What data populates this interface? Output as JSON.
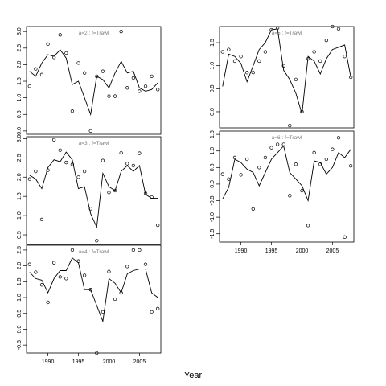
{
  "figure": {
    "xlabel": "Year"
  },
  "chart_data": [
    {
      "type": "line",
      "panel_label": "a=2  :  f=Trawl",
      "x_ticks": [
        1990,
        1995,
        2000,
        2005
      ],
      "show_x_ticks": false,
      "y_ticks": [
        "0.0",
        "0.5",
        "1.0",
        "1.5",
        "2.0",
        "2.5",
        "3.0"
      ],
      "xlim": [
        1986.5,
        2008.5
      ],
      "ylim": [
        -0.1,
        3.15
      ],
      "line": {
        "x": [
          1987,
          1988,
          1989,
          1990,
          1991,
          1992,
          1993,
          1994,
          1995,
          1996,
          1997,
          1998,
          1999,
          2000,
          2001,
          2002,
          2003,
          2004,
          2005,
          2006,
          2007,
          2008
        ],
        "y": [
          1.8,
          1.65,
          2.05,
          2.3,
          2.25,
          2.45,
          2.2,
          1.4,
          1.5,
          1.0,
          0.5,
          1.65,
          1.55,
          1.3,
          1.75,
          2.1,
          1.75,
          1.8,
          1.3,
          1.2,
          1.25,
          1.45
        ]
      },
      "points": {
        "x": [
          1987,
          1988,
          1989,
          1990,
          1991,
          1992,
          1993,
          1994,
          1995,
          1996,
          1997,
          1998,
          1999,
          2000,
          2001,
          2002,
          2003,
          2004,
          2005,
          2006,
          2007,
          2008
        ],
        "y": [
          1.35,
          1.87,
          1.7,
          2.62,
          2.22,
          2.9,
          2.35,
          0.6,
          2.05,
          1.75,
          0.0,
          1.65,
          1.8,
          1.05,
          1.05,
          3.0,
          1.3,
          1.6,
          1.2,
          1.35,
          1.65,
          1.25
        ]
      }
    },
    {
      "type": "line",
      "panel_label": "a=3  :  f=Trawl",
      "x_ticks": [
        1990,
        1995,
        2000,
        2005
      ],
      "show_x_ticks": false,
      "y_ticks": [
        "0.5",
        "1.0",
        "1.5",
        "2.0",
        "2.5",
        "3.0"
      ],
      "xlim": [
        1986.5,
        2008.5
      ],
      "ylim": [
        0.25,
        3.05
      ],
      "line": {
        "x": [
          1987,
          1988,
          1989,
          1990,
          1991,
          1992,
          1993,
          1994,
          1995,
          1996,
          1997,
          1998,
          1999,
          2000,
          2001,
          2002,
          2003,
          2004,
          2005,
          2006,
          2007,
          2008
        ],
        "y": [
          2.05,
          1.95,
          1.7,
          2.25,
          2.45,
          2.4,
          2.65,
          2.45,
          1.7,
          1.75,
          1.05,
          0.7,
          2.1,
          1.75,
          1.65,
          2.15,
          2.3,
          2.15,
          2.3,
          1.55,
          1.45,
          1.45
        ]
      },
      "points": {
        "x": [
          1987,
          1988,
          1989,
          1990,
          1991,
          1992,
          1993,
          1994,
          1995,
          1996,
          1997,
          1998,
          1999,
          2000,
          2001,
          2002,
          2003,
          2004,
          2005,
          2006,
          2007,
          2008
        ],
        "y": [
          1.95,
          2.15,
          0.9,
          2.18,
          2.97,
          2.7,
          2.38,
          2.33,
          2.0,
          2.15,
          1.18,
          0.35,
          2.43,
          1.6,
          1.65,
          2.63,
          2.35,
          2.3,
          2.62,
          1.58,
          1.48,
          0.75
        ]
      }
    },
    {
      "type": "line",
      "panel_label": "a=4  :  f=Trawl",
      "x_ticks": [
        1990,
        1995,
        2000,
        2005
      ],
      "show_x_ticks": true,
      "y_ticks": [
        "-0.5",
        "0.0",
        "0.5",
        "1.0",
        "1.5",
        "2.0",
        "2.5"
      ],
      "xlim": [
        1986.5,
        2008.5
      ],
      "ylim": [
        -0.75,
        2.65
      ],
      "line": {
        "x": [
          1987,
          1988,
          1989,
          1990,
          1991,
          1992,
          1993,
          1994,
          1995,
          1996,
          1997,
          1998,
          1999,
          2000,
          2001,
          2002,
          2003,
          2004,
          2005,
          2006,
          2007,
          2008
        ],
        "y": [
          1.8,
          1.6,
          1.55,
          1.15,
          1.6,
          1.85,
          1.85,
          2.25,
          2.1,
          1.25,
          1.25,
          0.75,
          0.25,
          1.6,
          1.45,
          1.15,
          1.75,
          1.85,
          1.9,
          1.9,
          1.15,
          1.0
        ]
      },
      "points": {
        "x": [
          1987,
          1988,
          1989,
          1990,
          1991,
          1992,
          1993,
          1994,
          1995,
          1996,
          1997,
          1998,
          1999,
          2000,
          2001,
          2002,
          2003,
          2004,
          2005,
          2006,
          2007,
          2008
        ],
        "y": [
          2.05,
          1.8,
          1.4,
          0.85,
          2.1,
          1.65,
          1.6,
          2.5,
          2.15,
          1.7,
          1.25,
          -0.75,
          0.55,
          1.82,
          0.95,
          1.15,
          1.98,
          2.5,
          2.5,
          2.05,
          0.55,
          0.65
        ]
      }
    },
    {
      "type": "line",
      "panel_label": "a=5  :  f=Trawl",
      "x_ticks": [
        1990,
        1995,
        2000,
        2005
      ],
      "show_x_ticks": false,
      "y_ticks": [
        "0.0",
        "0.5",
        "1.0",
        "1.5"
      ],
      "xlim": [
        1986.5,
        2008.5
      ],
      "ylim": [
        -0.35,
        1.85
      ],
      "line": {
        "x": [
          1987,
          1988,
          1989,
          1990,
          1991,
          1992,
          1993,
          1994,
          1995,
          1996,
          1997,
          1998,
          1999,
          2000,
          2001,
          2002,
          2003,
          2004,
          2005,
          2006,
          2007,
          2008
        ],
        "y": [
          0.55,
          1.25,
          1.2,
          1.05,
          0.65,
          1.0,
          1.35,
          1.5,
          1.78,
          1.8,
          0.9,
          0.7,
          0.4,
          -0.05,
          1.2,
          1.1,
          0.82,
          1.15,
          1.35,
          1.4,
          1.45,
          0.75
        ]
      },
      "points": {
        "x": [
          1987,
          1988,
          1989,
          1990,
          1991,
          1992,
          1993,
          1994,
          1995,
          1996,
          1997,
          1998,
          1999,
          2000,
          2001,
          2002,
          2003,
          2004,
          2005,
          2006,
          2007,
          2008
        ],
        "y": [
          1.3,
          1.35,
          1.1,
          1.2,
          0.85,
          0.85,
          1.1,
          1.3,
          1.78,
          1.82,
          1.0,
          -0.3,
          0.7,
          0.0,
          1.15,
          1.3,
          1.1,
          1.55,
          1.85,
          1.8,
          1.2,
          0.75
        ]
      }
    },
    {
      "type": "line",
      "panel_label": "a=6  :  f=Trawl",
      "x_ticks": [
        1990,
        1995,
        2000,
        2005
      ],
      "show_x_ticks": true,
      "y_ticks": [
        "-1.5",
        "-1.0",
        "-0.5",
        "0.0",
        "0.5",
        "1.0",
        "1.5"
      ],
      "xlim": [
        1986.5,
        2008.5
      ],
      "ylim": [
        -1.75,
        1.6
      ],
      "line": {
        "x": [
          1987,
          1988,
          1989,
          1990,
          1991,
          1992,
          1993,
          1994,
          1995,
          1996,
          1997,
          1998,
          1999,
          2000,
          2001,
          2002,
          2003,
          2004,
          2005,
          2006,
          2007,
          2008
        ],
        "y": [
          -0.45,
          -0.1,
          0.75,
          0.65,
          0.45,
          0.35,
          -0.05,
          0.35,
          0.75,
          0.95,
          1.15,
          0.35,
          0.15,
          -0.05,
          -0.5,
          0.7,
          0.65,
          0.3,
          0.5,
          0.95,
          0.8,
          1.05
        ]
      },
      "points": {
        "x": [
          1987,
          1988,
          1989,
          1990,
          1991,
          1992,
          1993,
          1994,
          1995,
          1996,
          1997,
          1998,
          1999,
          2000,
          2001,
          2002,
          2003,
          2004,
          2005,
          2006,
          2007,
          2008
        ],
        "y": [
          0.3,
          0.15,
          0.8,
          0.28,
          0.75,
          -0.75,
          0.5,
          0.8,
          1.1,
          1.2,
          1.2,
          -0.35,
          0.6,
          -0.2,
          -1.25,
          0.95,
          0.6,
          0.75,
          1.05,
          1.4,
          -1.6,
          0.55
        ]
      }
    }
  ]
}
